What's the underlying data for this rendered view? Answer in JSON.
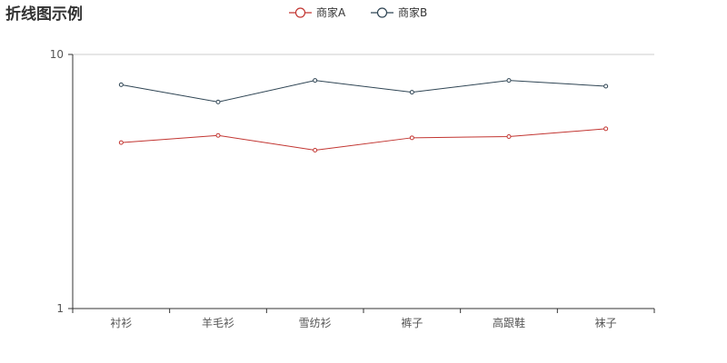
{
  "chart_data": {
    "type": "line",
    "title": "折线图示例",
    "categories": [
      "衬衫",
      "羊毛衫",
      "雪纺衫",
      "裤子",
      "高跟鞋",
      "袜子"
    ],
    "y_scale": "log",
    "ylim": [
      1,
      10
    ],
    "y_ticks": [
      "1",
      "10"
    ],
    "legend_position": "top-center",
    "grid": false,
    "series": [
      {
        "name": "商家A",
        "color": "#c23531",
        "values": [
          4.5,
          4.8,
          4.2,
          4.7,
          4.75,
          5.1
        ]
      },
      {
        "name": "商家B",
        "color": "#2f4554",
        "values": [
          7.6,
          6.5,
          7.9,
          7.1,
          7.9,
          7.5
        ]
      }
    ]
  }
}
